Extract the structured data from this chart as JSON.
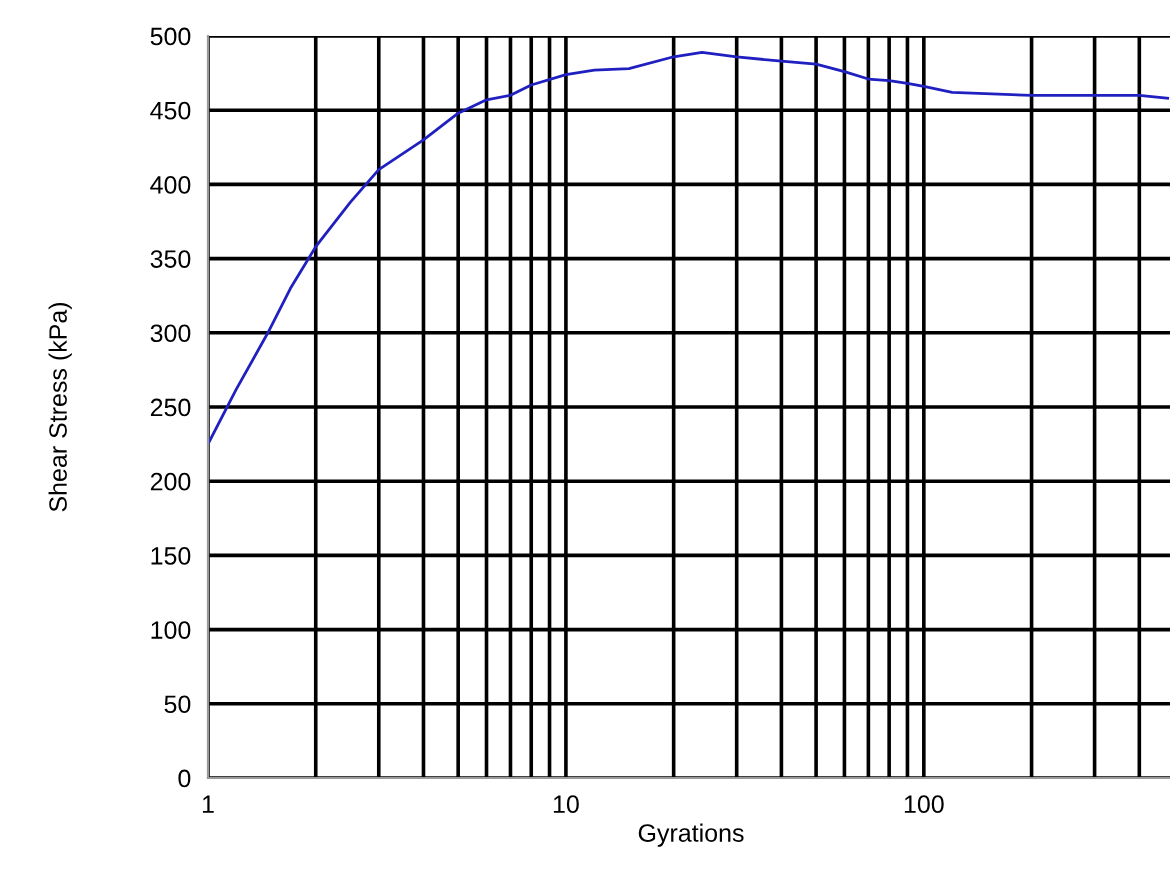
{
  "chart_data": {
    "type": "line",
    "xlabel": "Gyrations",
    "ylabel": "Shear Stress (kPa)",
    "log": "x",
    "grid": true,
    "legend": false,
    "marker": "none",
    "line_style": "solid",
    "x": [
      1,
      1.2,
      1.47,
      1.7,
      2,
      2.5,
      3,
      4,
      5,
      6,
      7,
      8,
      10,
      12,
      15,
      20,
      24,
      30,
      40,
      50,
      60,
      70,
      80,
      90,
      100,
      120,
      200,
      300,
      400,
      480
    ],
    "series": [
      {
        "color": "#2020c0",
        "values": [
          225,
          262,
          300,
          330,
          358,
          388,
          410,
          430,
          448,
          457,
          460,
          467,
          474,
          477,
          478,
          486,
          489,
          486,
          483,
          481,
          476,
          471,
          470,
          468,
          466,
          462,
          460,
          460,
          460,
          458
        ]
      }
    ],
    "xlim": [
      1,
      500
    ],
    "xticks": [
      1,
      {
        "value": 2,
        "label": null
      },
      {
        "value": 3,
        "label": null
      },
      {
        "value": 4,
        "label": null
      },
      {
        "value": 5,
        "label": null
      },
      {
        "value": 6,
        "label": null
      },
      {
        "value": 7,
        "label": null
      },
      {
        "value": 8,
        "label": null
      },
      {
        "value": 9,
        "label": null
      },
      10,
      {
        "value": 20,
        "label": null
      },
      {
        "value": 30,
        "label": null
      },
      {
        "value": 40,
        "label": null
      },
      {
        "value": 50,
        "label": null
      },
      {
        "value": 60,
        "label": null
      },
      {
        "value": 70,
        "label": null
      },
      {
        "value": 80,
        "label": null
      },
      {
        "value": 90,
        "label": null
      },
      100,
      {
        "value": 200,
        "label": null
      },
      {
        "value": 300,
        "label": null
      },
      {
        "value": 400,
        "label": null
      }
    ],
    "ylim": [
      0,
      500
    ],
    "yticks": [
      0,
      50,
      100,
      150,
      200,
      250,
      300,
      350,
      400,
      450,
      500
    ]
  }
}
